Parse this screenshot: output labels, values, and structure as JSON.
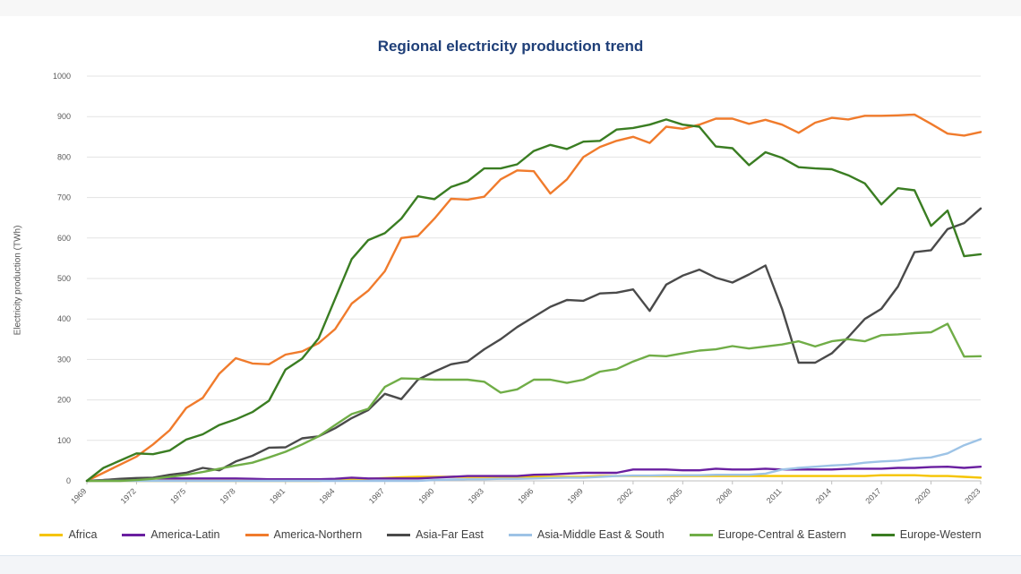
{
  "chart_data": {
    "type": "line",
    "title": "Regional electricity production trend",
    "ylabel": "Electricity production (TWh)",
    "xlabel": "",
    "ylim": [
      0,
      1000
    ],
    "yticks": [
      0,
      100,
      200,
      300,
      400,
      500,
      600,
      700,
      800,
      900,
      1000
    ],
    "xlim": [
      1969,
      2023
    ],
    "xticks": [
      1969,
      1972,
      1975,
      1978,
      1981,
      1984,
      1987,
      1990,
      1993,
      1996,
      1999,
      2002,
      2005,
      2008,
      2011,
      2014,
      2017,
      2020,
      2023
    ],
    "grid": "horizontal",
    "legend_position": "bottom",
    "x": [
      1969,
      1970,
      1971,
      1972,
      1973,
      1974,
      1975,
      1976,
      1977,
      1978,
      1979,
      1980,
      1981,
      1982,
      1983,
      1984,
      1985,
      1986,
      1987,
      1988,
      1989,
      1990,
      1991,
      1992,
      1993,
      1994,
      1995,
      1996,
      1997,
      1998,
      1999,
      2000,
      2001,
      2002,
      2003,
      2004,
      2005,
      2006,
      2007,
      2008,
      2009,
      2010,
      2011,
      2012,
      2013,
      2014,
      2015,
      2016,
      2017,
      2018,
      2019,
      2020,
      2021,
      2022,
      2023
    ],
    "series": [
      {
        "name": "Africa",
        "color": "#f5c400",
        "values": [
          0,
          0,
          0,
          0,
          0,
          0,
          0,
          0,
          0,
          0,
          0,
          0,
          0,
          0,
          0,
          2,
          4,
          5,
          7,
          9,
          10,
          10,
          10,
          10,
          10,
          10,
          10,
          10,
          10,
          10,
          10,
          12,
          12,
          12,
          12,
          12,
          12,
          12,
          12,
          12,
          12,
          12,
          12,
          12,
          12,
          12,
          12,
          12,
          14,
          14,
          14,
          12,
          12,
          10,
          8
        ]
      },
      {
        "name": "America-Latin",
        "color": "#6a1fa0",
        "values": [
          0,
          2,
          4,
          5,
          6,
          6,
          6,
          6,
          6,
          6,
          5,
          4,
          4,
          4,
          4,
          5,
          8,
          6,
          6,
          6,
          6,
          8,
          10,
          12,
          12,
          12,
          12,
          15,
          16,
          18,
          20,
          20,
          20,
          28,
          28,
          28,
          26,
          26,
          30,
          28,
          28,
          30,
          28,
          28,
          28,
          28,
          30,
          30,
          30,
          32,
          32,
          34,
          35,
          32,
          35
        ]
      },
      {
        "name": "America-Northern",
        "color": "#f07b2c",
        "values": [
          0,
          20,
          40,
          60,
          90,
          125,
          180,
          205,
          265,
          303,
          290,
          288,
          312,
          320,
          340,
          375,
          438,
          470,
          518,
          600,
          605,
          648,
          697,
          695,
          702,
          745,
          767,
          765,
          710,
          745,
          800,
          825,
          840,
          850,
          835,
          875,
          870,
          880,
          895,
          895,
          882,
          892,
          880,
          860,
          885,
          897,
          893,
          902,
          902,
          903,
          905,
          882,
          858,
          853,
          862
        ]
      },
      {
        "name": "Asia-Far East",
        "color": "#4a4a4a",
        "values": [
          0,
          2,
          5,
          7,
          8,
          15,
          20,
          32,
          26,
          48,
          62,
          82,
          83,
          105,
          110,
          130,
          155,
          175,
          215,
          202,
          250,
          270,
          288,
          295,
          325,
          350,
          380,
          405,
          430,
          447,
          445,
          463,
          465,
          473,
          420,
          485,
          507,
          522,
          502,
          490,
          510,
          532,
          425,
          292,
          292,
          315,
          355,
          400,
          425,
          480,
          565,
          570,
          622,
          637,
          673
        ]
      },
      {
        "name": "Asia-Middle East & South",
        "color": "#9dc3e6",
        "values": [
          0,
          0,
          0,
          0,
          0,
          0,
          0,
          0,
          0,
          0,
          0,
          0,
          0,
          0,
          0,
          0,
          0,
          0,
          0,
          0,
          0,
          2,
          3,
          4,
          4,
          5,
          5,
          6,
          7,
          8,
          8,
          10,
          12,
          13,
          13,
          14,
          14,
          14,
          15,
          15,
          15,
          18,
          28,
          32,
          35,
          38,
          40,
          45,
          48,
          50,
          55,
          58,
          68,
          88,
          103
        ]
      },
      {
        "name": "Europe-Central & Eastern",
        "color": "#70ad47",
        "values": [
          0,
          0,
          0,
          2,
          5,
          10,
          15,
          22,
          30,
          38,
          45,
          58,
          72,
          90,
          110,
          138,
          165,
          178,
          232,
          253,
          252,
          250,
          250,
          250,
          245,
          218,
          226,
          250,
          250,
          242,
          250,
          270,
          276,
          295,
          310,
          308,
          315,
          322,
          325,
          333,
          327,
          332,
          337,
          345,
          332,
          345,
          350,
          345,
          360,
          362,
          365,
          367,
          388,
          307,
          308
        ]
      },
      {
        "name": "Europe-Western",
        "color": "#3a7d22",
        "values": [
          0,
          32,
          50,
          68,
          66,
          75,
          102,
          115,
          138,
          152,
          170,
          198,
          275,
          302,
          352,
          450,
          548,
          595,
          612,
          648,
          703,
          696,
          726,
          740,
          772,
          772,
          782,
          815,
          830,
          820,
          838,
          840,
          868,
          872,
          880,
          893,
          880,
          875,
          826,
          822,
          780,
          812,
          798,
          775,
          772,
          770,
          755,
          735,
          683,
          723,
          718,
          630,
          668,
          555,
          560
        ]
      }
    ]
  }
}
